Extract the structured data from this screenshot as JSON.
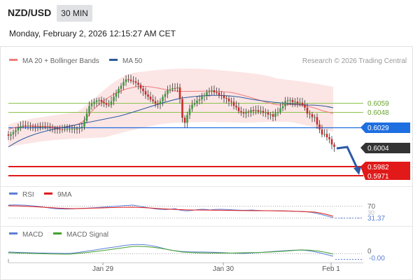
{
  "header": {
    "symbol": "NZD/USD",
    "interval": "30 MIN",
    "datetime": "Monday, February 2, 2026 12:15:27 AM CET"
  },
  "price_panel": {
    "legend": [
      {
        "label": "MA 20 + Bollinger Bands",
        "color": "#f07b7b"
      },
      {
        "label": "MA 50",
        "color": "#2b5a9c"
      }
    ],
    "credit": "Research © 2026 Trading Central",
    "levels": [
      {
        "value": "0.6059",
        "color": "#8bc34a",
        "kind": "resistance"
      },
      {
        "value": "0.6048",
        "color": "#8bc34a",
        "kind": "resistance"
      },
      {
        "value": "0.6029",
        "color": "#1e6fe0",
        "kind": "pivot"
      },
      {
        "value": "0.6004",
        "color": "#333333",
        "kind": "last-price"
      },
      {
        "value": "0.5982",
        "color": "#e11919",
        "kind": "support"
      },
      {
        "value": "0.5971",
        "color": "#e11919",
        "kind": "support"
      }
    ]
  },
  "rsi_panel": {
    "legend": [
      {
        "label": "RSI",
        "color": "#5b7fd6"
      },
      {
        "label": "9MA",
        "color": "#e11919"
      }
    ],
    "level_label": "70",
    "level_label_partial": "30",
    "value": "31.37"
  },
  "macd_panel": {
    "legend": [
      {
        "label": "MACD",
        "color": "#5b7fd6"
      },
      {
        "label": "MACD Signal",
        "color": "#43a02c"
      }
    ],
    "zero_label": "0",
    "value": "-0.00"
  },
  "x_axis": {
    "ticks": [
      "Jan 29",
      "Jan 30",
      "Feb 1"
    ]
  },
  "chart_data": {
    "type": "candlestick",
    "title": "NZD/USD",
    "interval": "30 MIN",
    "last_price": 0.6004,
    "resistance": [
      0.6059,
      0.6048
    ],
    "pivot": 0.6029,
    "support": [
      0.5982,
      0.5971
    ],
    "rsi_last": 31.37,
    "macd_last": -0.0
  }
}
